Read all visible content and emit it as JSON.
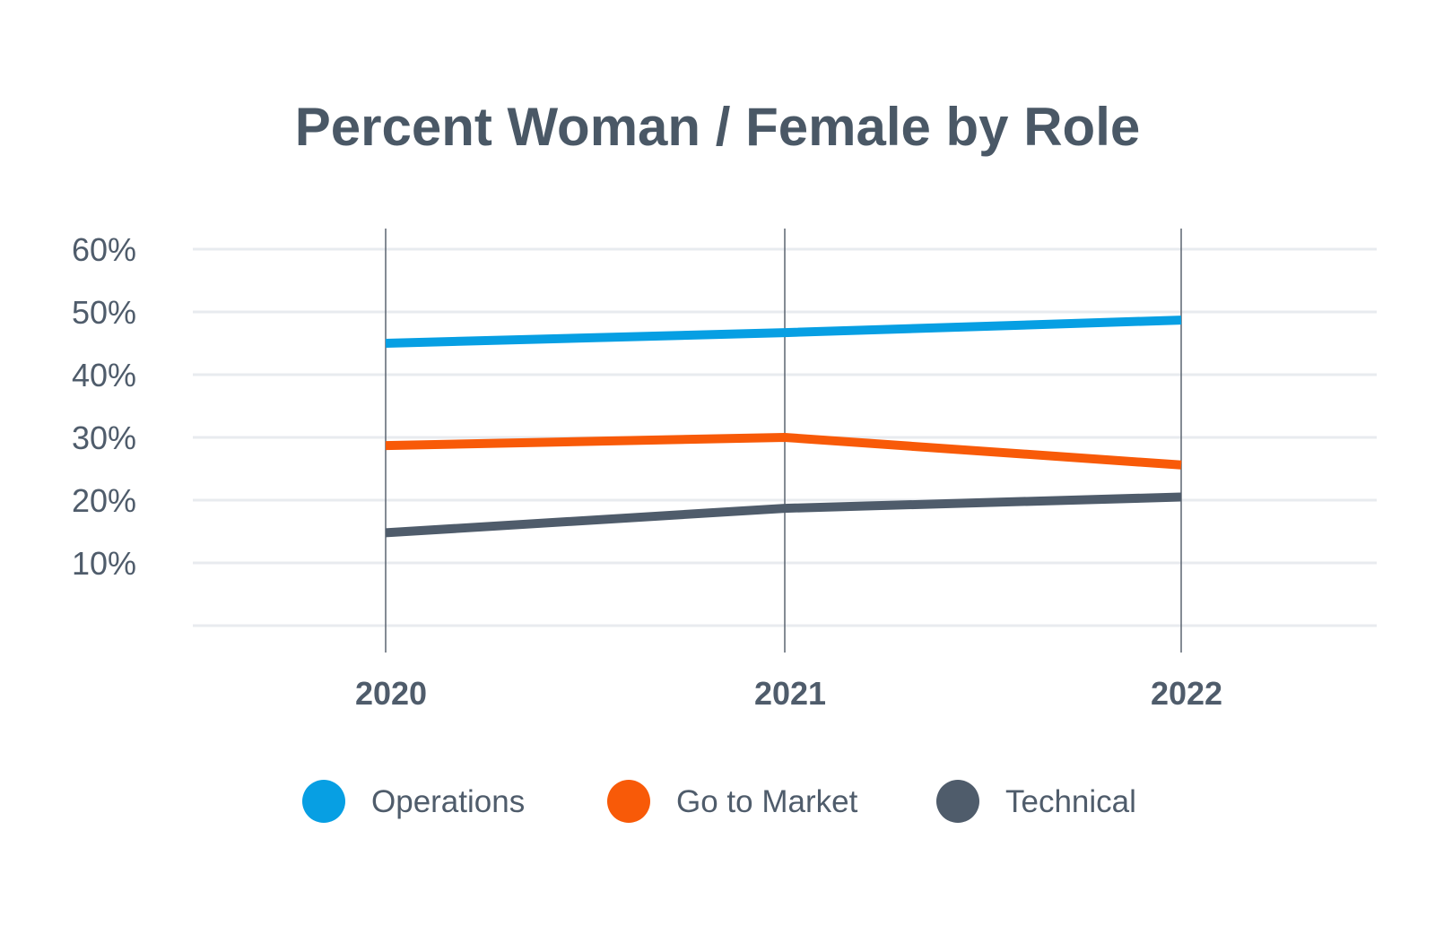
{
  "chart_data": {
    "type": "line",
    "title": "Percent Woman / Female by Role",
    "xlabel": "",
    "ylabel": "",
    "x": [
      "2020",
      "2021",
      "2022"
    ],
    "y_ticks": [
      "10%",
      "20%",
      "30%",
      "40%",
      "50%",
      "60%"
    ],
    "ylim": [
      0,
      60
    ],
    "grid": true,
    "legend_position": "bottom",
    "series": [
      {
        "name": "Operations",
        "values": [
          45,
          46.7,
          48.7
        ],
        "color": "#079fe3"
      },
      {
        "name": "Go to Market",
        "values": [
          28.7,
          30,
          25.6
        ],
        "color": "#f85a08"
      },
      {
        "name": "Technical",
        "values": [
          14.8,
          18.7,
          20.5
        ],
        "color": "#4f5c6b"
      }
    ]
  },
  "colors": {
    "title": "#4a5866",
    "text": "#4f5c6b",
    "gridline": "#e8ebef",
    "x_rule": "#5b6570"
  }
}
